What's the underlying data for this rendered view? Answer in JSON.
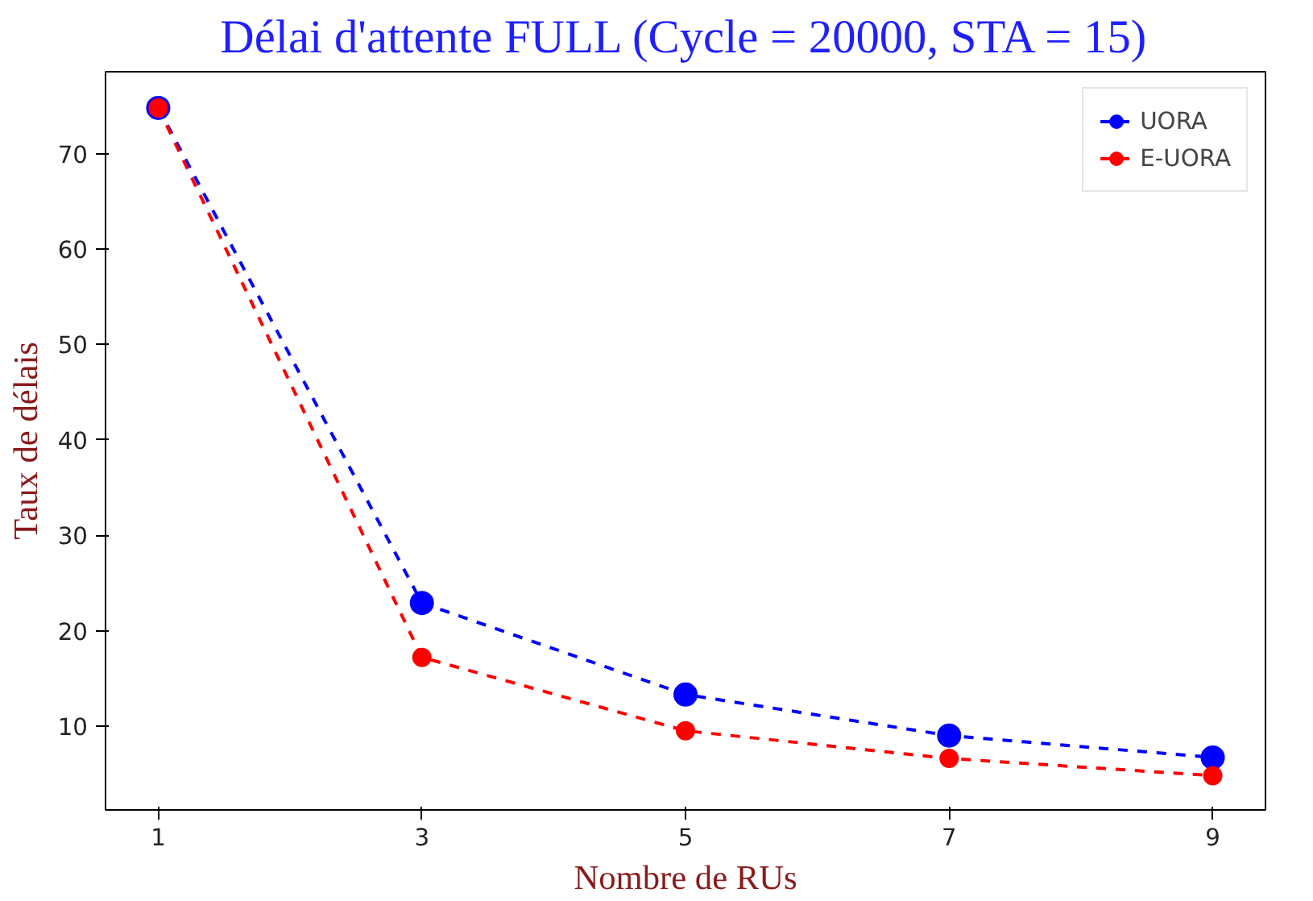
{
  "chart_data": {
    "type": "line",
    "title": "Délai d'attente FULL (Cycle = 20000, STA = 15)",
    "xlabel": "Nombre de RUs",
    "ylabel": "Taux de délais",
    "x": [
      1,
      3,
      5,
      7,
      9
    ],
    "series": [
      {
        "name": "UORA",
        "color": "#0000ff",
        "values": [
          74.8,
          22.9,
          13.3,
          9.0,
          6.7
        ]
      },
      {
        "name": "E-UORA",
        "color": "#ff0000",
        "values": [
          74.8,
          17.2,
          9.5,
          6.6,
          4.8
        ]
      }
    ],
    "xlim": [
      0.6,
      9.4
    ],
    "ylim": [
      1.2,
      78.6
    ],
    "xticks": [
      1,
      3,
      5,
      7,
      9
    ],
    "yticks": [
      10,
      20,
      30,
      40,
      50,
      60,
      70
    ],
    "marker": "circle",
    "line_style": "dashed",
    "legend": "top right",
    "grid": false
  }
}
